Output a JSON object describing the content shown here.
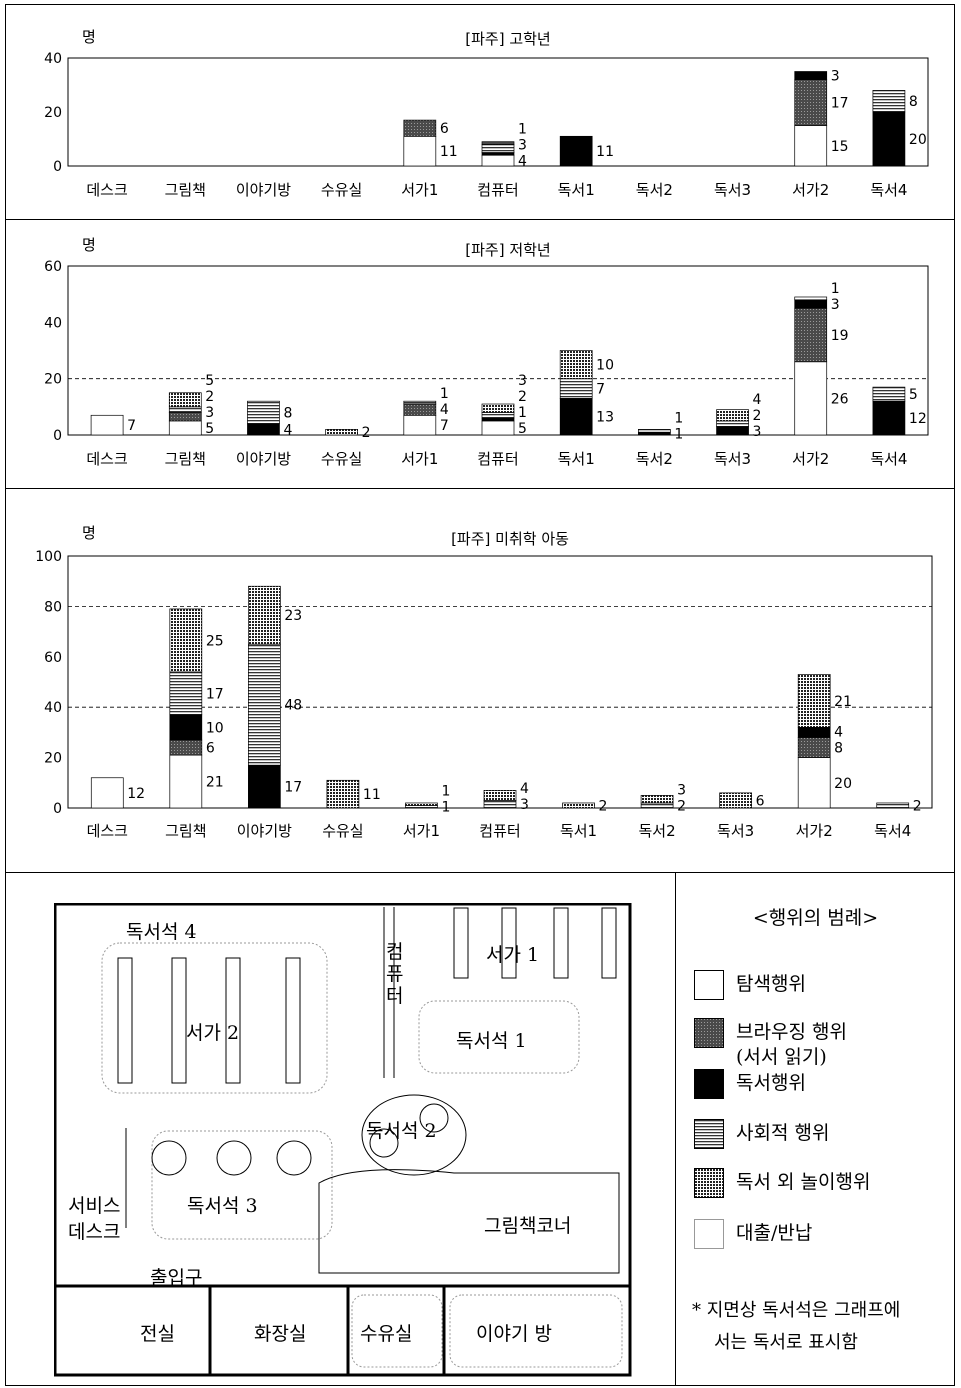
{
  "unit": "명",
  "categories": [
    "데스크",
    "그림책",
    "이야기방",
    "수유실",
    "서가1",
    "컴퓨터",
    "독서1",
    "독서2",
    "독서3",
    "서가2",
    "독서4"
  ],
  "chart_data": [
    {
      "type": "bar",
      "title": "[파주] 고학년",
      "ylabel": "명",
      "ylim": [
        0,
        40
      ],
      "yticks": [
        0,
        20,
        40
      ],
      "categories": [
        "데스크",
        "그림책",
        "이야기방",
        "수유실",
        "서가1",
        "컴퓨터",
        "독서1",
        "독서2",
        "독서3",
        "서가2",
        "독서4"
      ],
      "stacks": [
        [],
        [],
        [],
        [],
        [
          {
            "type": "explore",
            "value": 11,
            "label": "11"
          },
          {
            "type": "browsing",
            "value": 6,
            "label": "6"
          }
        ],
        [
          {
            "type": "explore",
            "value": 4,
            "label": "4"
          },
          {
            "type": "reading",
            "value": 1,
            "label": ""
          },
          {
            "type": "social",
            "value": 3,
            "label": "3"
          },
          {
            "type": "browsing",
            "value": 1,
            "label": "1"
          }
        ],
        [
          {
            "type": "reading",
            "value": 11,
            "label": "11"
          }
        ],
        [],
        [],
        [
          {
            "type": "explore",
            "value": 15,
            "label": "15"
          },
          {
            "type": "browsing",
            "value": 17,
            "label": "17"
          },
          {
            "type": "reading",
            "value": 3,
            "label": "3"
          }
        ],
        [
          {
            "type": "reading",
            "value": 20,
            "label": "20"
          },
          {
            "type": "social",
            "value": 8,
            "label": "8"
          }
        ]
      ]
    },
    {
      "type": "bar",
      "title": "[파주] 저학년",
      "ylabel": "명",
      "ylim": [
        0,
        60
      ],
      "yticks": [
        0,
        20,
        40,
        60
      ],
      "dashed": [
        20
      ],
      "categories": [
        "데스크",
        "그림책",
        "이야기방",
        "수유실",
        "서가1",
        "컴퓨터",
        "독서1",
        "독서2",
        "독서3",
        "서가2",
        "독서4"
      ],
      "stacks": [
        [
          {
            "type": "explore",
            "value": 7,
            "label": "7"
          }
        ],
        [
          {
            "type": "explore",
            "value": 5,
            "label": "5"
          },
          {
            "type": "browsing",
            "value": 3,
            "label": "3"
          },
          {
            "type": "social",
            "value": 2,
            "label": "2"
          },
          {
            "type": "play",
            "value": 5,
            "label": "5"
          }
        ],
        [
          {
            "type": "reading",
            "value": 4,
            "label": "4"
          },
          {
            "type": "social",
            "value": 8,
            "label": "8"
          }
        ],
        [
          {
            "type": "play",
            "value": 2,
            "label": "2"
          }
        ],
        [
          {
            "type": "explore",
            "value": 7,
            "label": "7"
          },
          {
            "type": "browsing",
            "value": 4,
            "label": "4"
          },
          {
            "type": "social",
            "value": 1,
            "label": "1"
          }
        ],
        [
          {
            "type": "explore",
            "value": 5,
            "label": "5"
          },
          {
            "type": "reading",
            "value": 1,
            "label": "1"
          },
          {
            "type": "social",
            "value": 2,
            "label": "2"
          },
          {
            "type": "play",
            "value": 3,
            "label": "3"
          }
        ],
        [
          {
            "type": "reading",
            "value": 13,
            "label": "13"
          },
          {
            "type": "social",
            "value": 7,
            "label": "7"
          },
          {
            "type": "play",
            "value": 10,
            "label": "10"
          }
        ],
        [
          {
            "type": "reading",
            "value": 1,
            "label": "1"
          },
          {
            "type": "social",
            "value": 1,
            "label": "1"
          }
        ],
        [
          {
            "type": "reading",
            "value": 3,
            "label": "3"
          },
          {
            "type": "social",
            "value": 2,
            "label": "2"
          },
          {
            "type": "play",
            "value": 4,
            "label": "4"
          }
        ],
        [
          {
            "type": "explore",
            "value": 26,
            "label": "26"
          },
          {
            "type": "browsing",
            "value": 19,
            "label": "19"
          },
          {
            "type": "reading",
            "value": 3,
            "label": "3"
          },
          {
            "type": "explore",
            "value": 1,
            "label": "1"
          }
        ],
        [
          {
            "type": "reading",
            "value": 12,
            "label": "12"
          },
          {
            "type": "social",
            "value": 5,
            "label": "5"
          }
        ]
      ]
    },
    {
      "type": "bar",
      "title": "[파주] 미취학 아동",
      "ylabel": "명",
      "ylim": [
        0,
        100
      ],
      "yticks": [
        0,
        20,
        40,
        60,
        80,
        100
      ],
      "dashed": [
        40,
        80
      ],
      "categories": [
        "데스크",
        "그림책",
        "이야기방",
        "수유실",
        "서가1",
        "컴퓨터",
        "독서1",
        "독서2",
        "독서3",
        "서가2",
        "독서4"
      ],
      "stacks": [
        [
          {
            "type": "explore",
            "value": 12,
            "label": "12"
          }
        ],
        [
          {
            "type": "explore",
            "value": 21,
            "label": "21"
          },
          {
            "type": "browsing",
            "value": 6,
            "label": "6"
          },
          {
            "type": "reading",
            "value": 10,
            "label": "10"
          },
          {
            "type": "social",
            "value": 17,
            "label": "17"
          },
          {
            "type": "play",
            "value": 25,
            "label": "25"
          }
        ],
        [
          {
            "type": "reading",
            "value": 17,
            "label": "17"
          },
          {
            "type": "social",
            "value": 48,
            "label": "48"
          },
          {
            "type": "play",
            "value": 23,
            "label": "23"
          }
        ],
        [
          {
            "type": "play",
            "value": 11,
            "label": "11"
          }
        ],
        [
          {
            "type": "social",
            "value": 1,
            "label": "1"
          },
          {
            "type": "play",
            "value": 1,
            "label": "1"
          }
        ],
        [
          {
            "type": "social",
            "value": 3,
            "label": "3"
          },
          {
            "type": "play",
            "value": 4,
            "label": "4"
          }
        ],
        [
          {
            "type": "play",
            "value": 2,
            "label": "2"
          }
        ],
        [
          {
            "type": "social",
            "value": 2,
            "label": "2"
          },
          {
            "type": "play",
            "value": 3,
            "label": "3"
          }
        ],
        [
          {
            "type": "play",
            "value": 6,
            "label": "6"
          }
        ],
        [
          {
            "type": "explore",
            "value": 20,
            "label": "20"
          },
          {
            "type": "browsing",
            "value": 8,
            "label": "8"
          },
          {
            "type": "reading",
            "value": 4,
            "label": "4"
          },
          {
            "type": "play",
            "value": 21,
            "label": "21"
          }
        ],
        [
          {
            "type": "social",
            "value": 2,
            "label": "2"
          }
        ]
      ]
    }
  ],
  "legend": {
    "title": "<행위의 범례>",
    "items": [
      {
        "type": "explore",
        "label": "탐색행위"
      },
      {
        "type": "browsing",
        "label": "브라우징 행위",
        "label2": "(서서 읽기)"
      },
      {
        "type": "reading",
        "label": "독서행위"
      },
      {
        "type": "social",
        "label": "사회적 행위"
      },
      {
        "type": "play",
        "label": "독서 외 놀이행위"
      },
      {
        "type": "loan",
        "label": "대출/반납"
      }
    ],
    "note1": "* 지면상 독서석은 그래프에",
    "note2": "서는 독서로 표시함"
  },
  "floorplan": {
    "reading4": "독서석 4",
    "shelf2": "서가 2",
    "computer": [
      "컴",
      "퓨",
      "터"
    ],
    "shelf1": "서가 1",
    "reading1": "독서석 1",
    "reading2": "독서석 2",
    "reading3": "독서석 3",
    "service1": "서비스",
    "service2": "데스크",
    "picturebook": "그림책코너",
    "entrance": "출입구",
    "room": "전실",
    "toilet": "화장실",
    "nursing": "수유실",
    "storyroom": "이야기 방"
  }
}
